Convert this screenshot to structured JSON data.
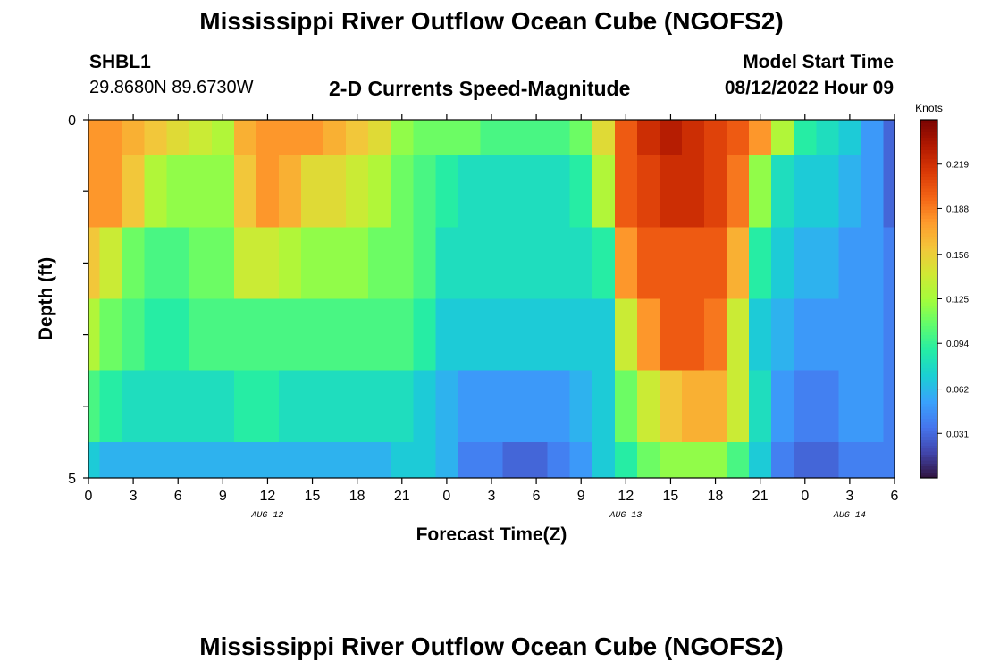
{
  "header": {
    "title": "Mississippi River Outflow Ocean Cube (NGOFS2)",
    "station_id": "SHBL1",
    "station_coords": "29.8680N  89.6730W",
    "plot_name": "2-D Currents Speed-Magnitude",
    "model_start_label": "Model Start Time",
    "model_start_value": "08/12/2022 Hour 09"
  },
  "footer": {
    "title": "Mississippi River Outflow Ocean Cube (NGOFS2)"
  },
  "colors": {
    "colormap": [
      "#30123b",
      "#4145ab",
      "#4675ed",
      "#39a2fc",
      "#1bcfd4",
      "#24eca6",
      "#61fc6c",
      "#a4fc3b",
      "#d1e834",
      "#f3c63a",
      "#fe9b2d",
      "#f36315",
      "#d93806",
      "#b11901",
      "#7a0402"
    ]
  },
  "chart_data": {
    "type": "heatmap",
    "title": "2-D Currents Speed-Magnitude",
    "xlabel": "Forecast Time(Z)",
    "ylabel": "Depth (ft)",
    "x_tick_labels": [
      "0",
      "3",
      "6",
      "9",
      "12",
      "15",
      "18",
      "21",
      "0",
      "3",
      "6",
      "9",
      "12",
      "15",
      "18",
      "21",
      "0",
      "3",
      "6"
    ],
    "x_date_labels": [
      {
        "text": "AUG 12",
        "hour": 12
      },
      {
        "text": "AUG 13",
        "hour": 36
      },
      {
        "text": "AUG 14",
        "hour": 51
      }
    ],
    "y_tick_labels": [
      "0",
      "5"
    ],
    "ylim": [
      0,
      5
    ],
    "xlim_hours": [
      0,
      54
    ],
    "colorbar": {
      "label": "Knots",
      "min": 0.0,
      "max": 0.25,
      "ticks": [
        0.031,
        0.062,
        0.094,
        0.125,
        0.156,
        0.188,
        0.219
      ]
    },
    "depth_layers_ft": [
      [
        0.0,
        0.5
      ],
      [
        0.5,
        1.5
      ],
      [
        1.5,
        2.5
      ],
      [
        2.5,
        3.5
      ],
      [
        3.5,
        4.5
      ],
      [
        4.5,
        5.0
      ]
    ],
    "time_hours": [
      0,
      1.5,
      3,
      4.5,
      6,
      7.5,
      9,
      10.5,
      12,
      13.5,
      15,
      16.5,
      18,
      19.5,
      21,
      22.5,
      24,
      25.5,
      27,
      28.5,
      30,
      31.5,
      33,
      34.5,
      36,
      37.5,
      39,
      40.5,
      42,
      43.5,
      45,
      46.5,
      48,
      49.5,
      51,
      52.5,
      54
    ],
    "values_knots": [
      [
        0.18,
        0.18,
        0.17,
        0.16,
        0.15,
        0.14,
        0.13,
        0.17,
        0.18,
        0.18,
        0.18,
        0.17,
        0.16,
        0.15,
        0.12,
        0.11,
        0.11,
        0.11,
        0.1,
        0.1,
        0.1,
        0.1,
        0.11,
        0.15,
        0.2,
        0.22,
        0.23,
        0.22,
        0.21,
        0.2,
        0.18,
        0.13,
        0.09,
        0.08,
        0.07,
        0.05,
        0.03
      ],
      [
        0.18,
        0.18,
        0.16,
        0.13,
        0.12,
        0.12,
        0.12,
        0.16,
        0.18,
        0.17,
        0.15,
        0.15,
        0.14,
        0.13,
        0.11,
        0.1,
        0.09,
        0.08,
        0.08,
        0.08,
        0.08,
        0.08,
        0.09,
        0.13,
        0.2,
        0.21,
        0.22,
        0.22,
        0.21,
        0.19,
        0.12,
        0.08,
        0.07,
        0.07,
        0.06,
        0.05,
        0.03
      ],
      [
        0.16,
        0.14,
        0.11,
        0.1,
        0.1,
        0.11,
        0.11,
        0.14,
        0.14,
        0.13,
        0.12,
        0.12,
        0.12,
        0.11,
        0.11,
        0.1,
        0.08,
        0.08,
        0.08,
        0.08,
        0.08,
        0.08,
        0.08,
        0.09,
        0.18,
        0.2,
        0.2,
        0.2,
        0.2,
        0.17,
        0.09,
        0.07,
        0.06,
        0.06,
        0.05,
        0.05,
        0.04
      ],
      [
        0.13,
        0.11,
        0.1,
        0.09,
        0.09,
        0.1,
        0.1,
        0.1,
        0.1,
        0.1,
        0.1,
        0.1,
        0.1,
        0.1,
        0.1,
        0.09,
        0.07,
        0.07,
        0.07,
        0.07,
        0.07,
        0.07,
        0.07,
        0.07,
        0.14,
        0.18,
        0.2,
        0.2,
        0.19,
        0.14,
        0.07,
        0.06,
        0.05,
        0.05,
        0.05,
        0.05,
        0.04
      ],
      [
        0.1,
        0.09,
        0.08,
        0.08,
        0.08,
        0.08,
        0.08,
        0.09,
        0.09,
        0.08,
        0.08,
        0.08,
        0.08,
        0.08,
        0.08,
        0.07,
        0.06,
        0.05,
        0.05,
        0.05,
        0.05,
        0.05,
        0.06,
        0.07,
        0.11,
        0.14,
        0.16,
        0.17,
        0.17,
        0.14,
        0.08,
        0.05,
        0.04,
        0.04,
        0.05,
        0.05,
        0.04
      ],
      [
        0.07,
        0.06,
        0.06,
        0.06,
        0.06,
        0.06,
        0.06,
        0.06,
        0.06,
        0.06,
        0.06,
        0.06,
        0.06,
        0.06,
        0.07,
        0.07,
        0.06,
        0.04,
        0.04,
        0.03,
        0.03,
        0.04,
        0.05,
        0.07,
        0.09,
        0.11,
        0.12,
        0.12,
        0.12,
        0.1,
        0.07,
        0.04,
        0.03,
        0.03,
        0.04,
        0.04,
        0.04
      ]
    ]
  }
}
